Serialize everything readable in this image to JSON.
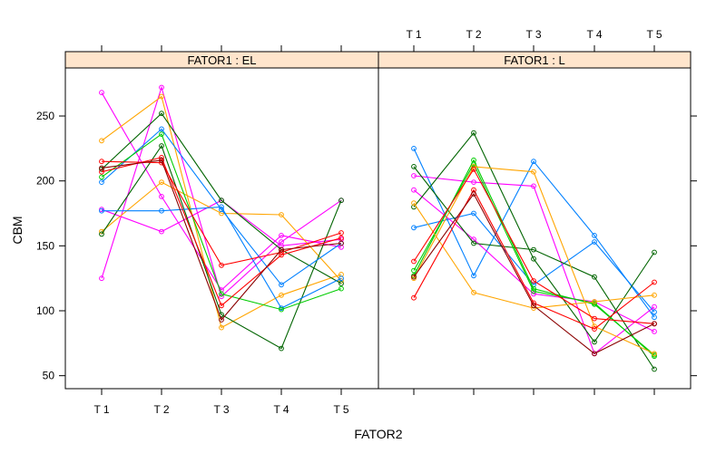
{
  "chart_data": {
    "type": "line",
    "xlabel": "FATOR2",
    "ylabel": "CBM",
    "x_categories": [
      "T 1",
      "T 2",
      "T 3",
      "T 4",
      "T 5"
    ],
    "y_ticks": [
      50,
      100,
      150,
      200,
      250
    ],
    "ylim": [
      40,
      287
    ],
    "grid": false,
    "palette": [
      "#0080ff",
      "#ff00ff",
      "#006400",
      "#ff0000",
      "#ffa500",
      "#00cc00",
      "#8b0000"
    ],
    "panels": [
      {
        "strip_label": "FATOR1 : EL",
        "series": [
          {
            "color": "#ff00ff",
            "values": [
              268,
              188,
              116,
              158,
              149
            ]
          },
          {
            "color": "#ff00ff",
            "values": [
              125,
              272,
              111,
              153,
              185
            ]
          },
          {
            "color": "#ff00ff",
            "values": [
              178,
              161,
              185,
              150,
              155
            ]
          },
          {
            "color": "#ffa500",
            "values": [
              231,
              265,
              87,
              112,
              128
            ]
          },
          {
            "color": "#ffa500",
            "values": [
              161,
              199,
              175,
              174,
              123
            ]
          },
          {
            "color": "#006400",
            "values": [
              159,
              227,
              97,
              71,
              185
            ]
          },
          {
            "color": "#006400",
            "values": [
              209,
              252,
              185,
              147,
              121
            ]
          },
          {
            "color": "#0080ff",
            "values": [
              199,
              240,
              178,
              120,
              152
            ]
          },
          {
            "color": "#0080ff",
            "values": [
              177,
              177,
              180,
              102,
              125
            ]
          },
          {
            "color": "#00cc00",
            "values": [
              203,
              236,
              113,
              101,
              117
            ]
          },
          {
            "color": "#ff0000",
            "values": [
              215,
              214,
              135,
              145,
              160
            ]
          },
          {
            "color": "#ff0000",
            "values": [
              207,
              218,
              104,
              143,
              156
            ]
          },
          {
            "color": "#8b0000",
            "values": [
              210,
              216,
              93,
              147,
              152
            ]
          }
        ]
      },
      {
        "strip_label": "FATOR1 : L",
        "series": [
          {
            "color": "#0080ff",
            "values": [
              225,
              127,
              215,
              158,
              95
            ]
          },
          {
            "color": "#0080ff",
            "values": [
              164,
              175,
              120,
              153,
              99
            ]
          },
          {
            "color": "#ff00ff",
            "values": [
              204,
              199,
              196,
              67,
              103
            ]
          },
          {
            "color": "#ff00ff",
            "values": [
              193,
              155,
              113,
              107,
              84
            ]
          },
          {
            "color": "#006400",
            "values": [
              211,
              152,
              147,
              126,
              55
            ]
          },
          {
            "color": "#006400",
            "values": [
              180,
              237,
              140,
              76,
              145
            ]
          },
          {
            "color": "#00cc00",
            "values": [
              131,
              213,
              115,
              106,
              65
            ]
          },
          {
            "color": "#00cc00",
            "values": [
              127,
              216,
              117,
              105,
              66
            ]
          },
          {
            "color": "#ffa500",
            "values": [
              183,
              114,
              102,
              107,
              112
            ]
          },
          {
            "color": "#ffa500",
            "values": [
              125,
              211,
              207,
              88,
              67
            ]
          },
          {
            "color": "#ff0000",
            "values": [
              138,
              209,
              123,
              94,
              90
            ]
          },
          {
            "color": "#ff0000",
            "values": [
              110,
              193,
              106,
              86,
              122
            ]
          },
          {
            "color": "#8b0000",
            "values": [
              126,
              190,
              104,
              67,
              90
            ]
          }
        ]
      }
    ]
  }
}
